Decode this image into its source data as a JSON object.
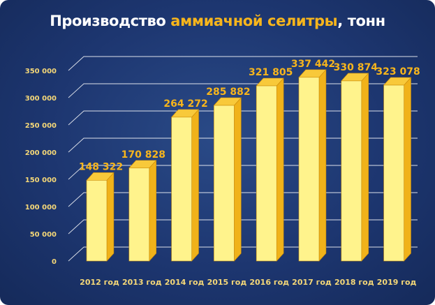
{
  "title": {
    "part1": "Производство ",
    "part2": "аммиачной селитры",
    "part3": ", тонн"
  },
  "colors": {
    "background": "#1d3670",
    "bar_front": "#fff38c",
    "bar_side": "#f0b21a",
    "bar_top": "#f8c93a",
    "accent": "#f7b51c",
    "axis_text": "#f5d878",
    "grid": "#ffffff"
  },
  "chart_data": {
    "type": "bar",
    "title": "Производство аммиачной селитры, тонн",
    "categories": [
      "2012 год",
      "2013 год",
      "2014 год",
      "2015 год",
      "2016 год",
      "2017 год",
      "2018 год",
      "2019 год"
    ],
    "values": [
      148322,
      170828,
      264272,
      285882,
      321805,
      337442,
      330874,
      323078
    ],
    "value_labels": [
      "148 322",
      "170 828",
      "264 272",
      "285 882",
      "321 805",
      "337 442",
      "330 874",
      "323 078"
    ],
    "yticks": [
      0,
      50000,
      100000,
      150000,
      200000,
      250000,
      300000,
      350000
    ],
    "ytick_labels": [
      "0",
      "50 000",
      "100 000",
      "150 000",
      "200 000",
      "250 000",
      "300 000",
      "350 000"
    ],
    "ylim": [
      0,
      350000
    ],
    "grid": true,
    "style": "3d"
  }
}
